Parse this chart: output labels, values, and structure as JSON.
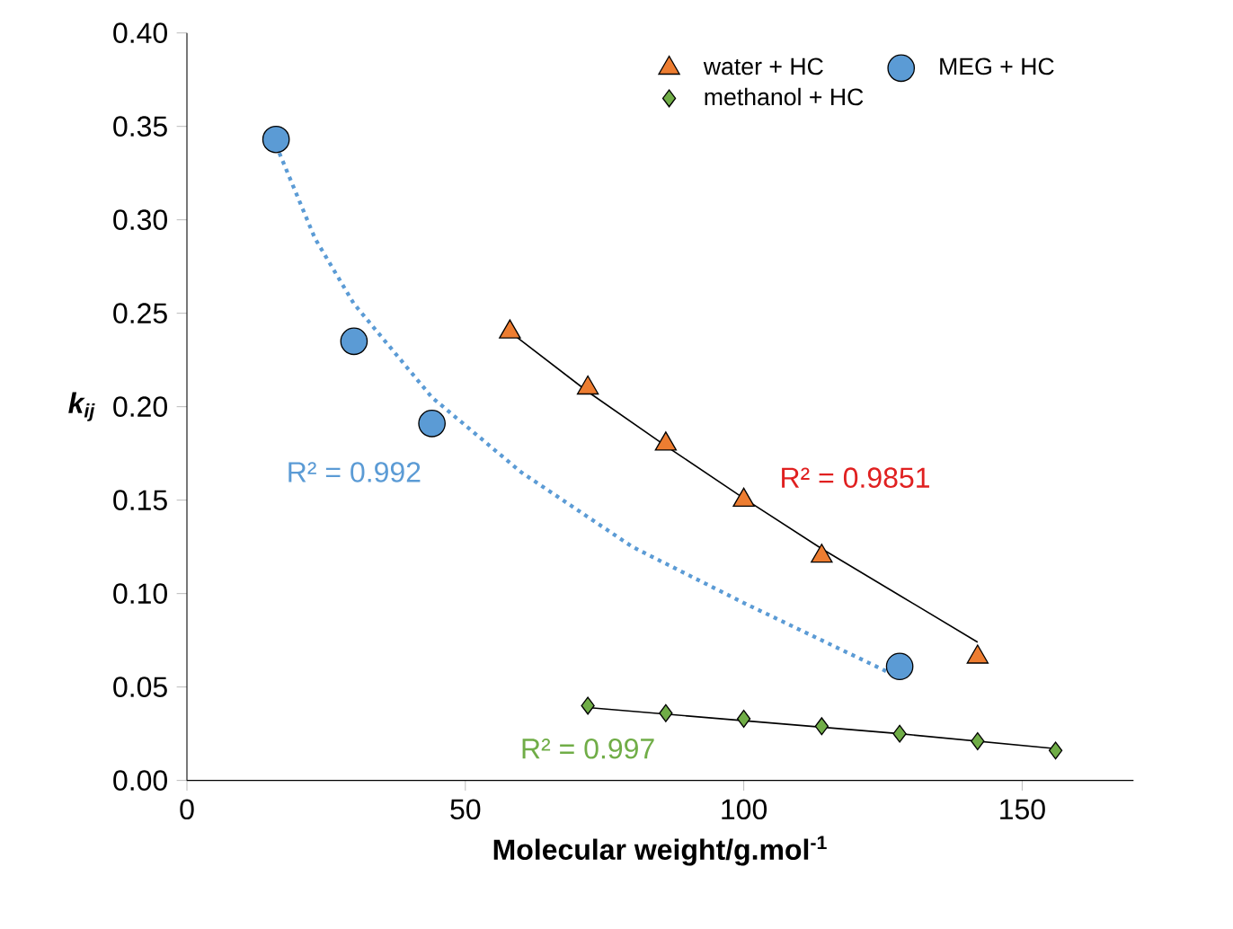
{
  "chart_data": {
    "type": "scatter",
    "xlabel": "Molecular weight/g.mol$^{-1}$",
    "ylabel": "k$_{ij}$",
    "xlim": [
      0,
      170
    ],
    "xticks": [
      0,
      50,
      100,
      150
    ],
    "ylim": [
      0,
      0.4
    ],
    "yticks": [
      {
        "value": 0,
        "label": "0.00"
      },
      {
        "value": 0.05,
        "label": "0.05"
      },
      {
        "value": 0.1,
        "label": "0.10"
      },
      {
        "value": 0.15,
        "label": "0.15"
      },
      {
        "value": 0.2,
        "label": "0.20"
      },
      {
        "value": 0.25,
        "label": "0.25"
      },
      {
        "value": 0.3,
        "label": "0.30"
      },
      {
        "value": 0.35,
        "label": "0.35"
      },
      {
        "value": 0.4,
        "label": "0.40"
      }
    ],
    "legend": "top right",
    "series": [
      {
        "name": "water + HC",
        "color": "#ed7d31",
        "marker": "triangle",
        "x": [
          58,
          72,
          86,
          100,
          114,
          142
        ],
        "values": [
          0.24,
          0.21,
          0.18,
          0.15,
          0.12,
          0.066
        ]
      },
      {
        "name": "MEG + HC",
        "color": "#5b9bd5",
        "marker": "circle",
        "x": [
          16,
          30,
          44,
          128
        ],
        "values": [
          0.343,
          0.235,
          0.191,
          0.061
        ]
      },
      {
        "name": "methanol + HC",
        "color": "#70ad47",
        "marker": "diamond",
        "x": [
          72,
          86,
          100,
          114,
          128,
          142,
          156
        ],
        "values": [
          0.04,
          0.036,
          0.033,
          0.029,
          0.025,
          0.021,
          0.016
        ]
      },
      {
        "type": "line",
        "color": "#000000",
        "line_style": "solid",
        "x": [
          58,
          72,
          86,
          100,
          114,
          128,
          142
        ],
        "values": [
          0.24,
          0.208,
          0.179,
          0.151,
          0.124,
          0.099,
          0.074
        ]
      },
      {
        "type": "line",
        "color": "#5b9bd5",
        "line_style": "dotted",
        "x": [
          16,
          23,
          30,
          44,
          60,
          80,
          100,
          128
        ],
        "values": [
          0.34,
          0.29,
          0.255,
          0.205,
          0.165,
          0.125,
          0.095,
          0.055
        ]
      },
      {
        "type": "line",
        "color": "#000000",
        "line_style": "solid",
        "x": [
          72,
          100,
          128,
          156
        ],
        "values": [
          0.039,
          0.032,
          0.025,
          0.017
        ]
      }
    ],
    "annotations": [
      "R² = 0.992",
      "R² = 0.9851",
      "R² = 0.997"
    ]
  }
}
